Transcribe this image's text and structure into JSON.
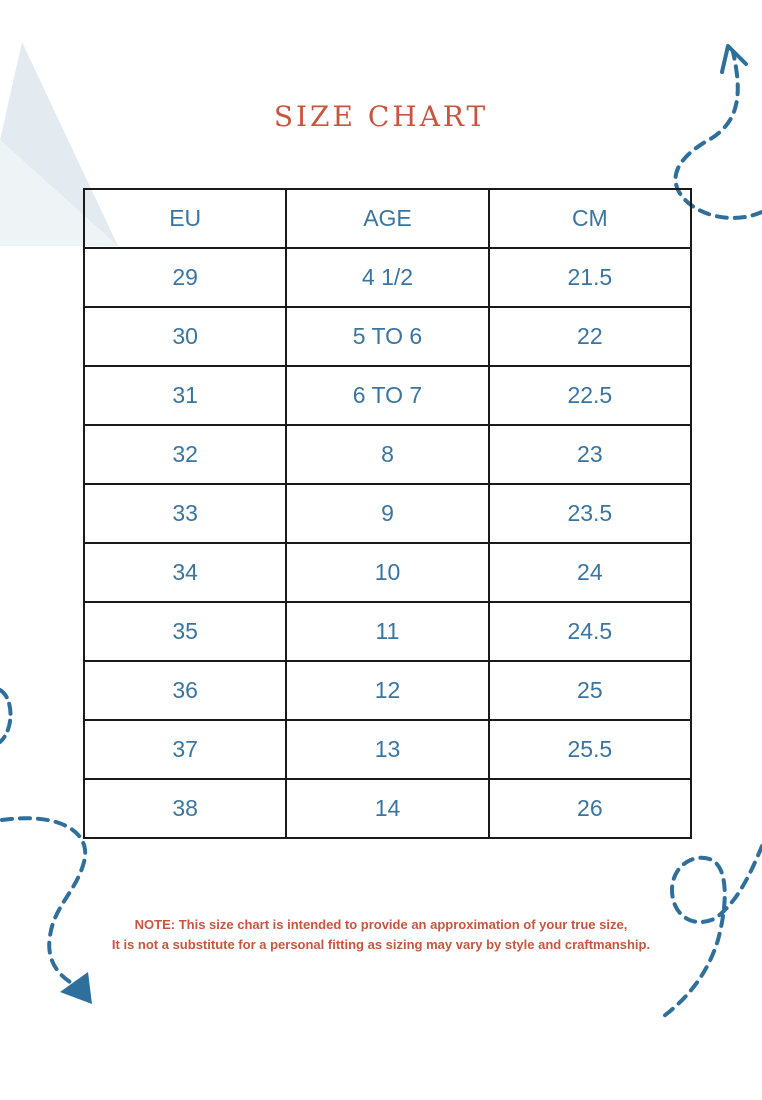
{
  "title": "SIZE CHART",
  "table": {
    "headers": [
      "EU",
      "AGE",
      "CM"
    ],
    "rows": [
      [
        "29",
        "4 1/2",
        "21.5"
      ],
      [
        "30",
        "5 TO 6",
        "22"
      ],
      [
        "31",
        "6 TO 7",
        "22.5"
      ],
      [
        "32",
        "8",
        "23"
      ],
      [
        "33",
        "9",
        "23.5"
      ],
      [
        "34",
        "10",
        "24"
      ],
      [
        "35",
        "11",
        "24.5"
      ],
      [
        "36",
        "12",
        "25"
      ],
      [
        "37",
        "13",
        "25.5"
      ],
      [
        "38",
        "14",
        "26"
      ]
    ]
  },
  "note": {
    "line1": "NOTE: This size chart is intended to provide an approximation of your true size,",
    "line2": "It is not a substitute for a personal fitting as sizing may vary by style and craftmanship."
  },
  "colors": {
    "accent": "#c8553d",
    "table_text": "#3a74a0",
    "decor_blue": "#2f6f9c",
    "decor_triangle": "#e3ebf0",
    "border": "#1a1a1a"
  },
  "decor_icons": [
    "triangle-shape",
    "dashed-arrow-top-right",
    "dashed-arc-left",
    "dashed-arrow-bottom-left",
    "dashed-loop-bottom-right"
  ]
}
